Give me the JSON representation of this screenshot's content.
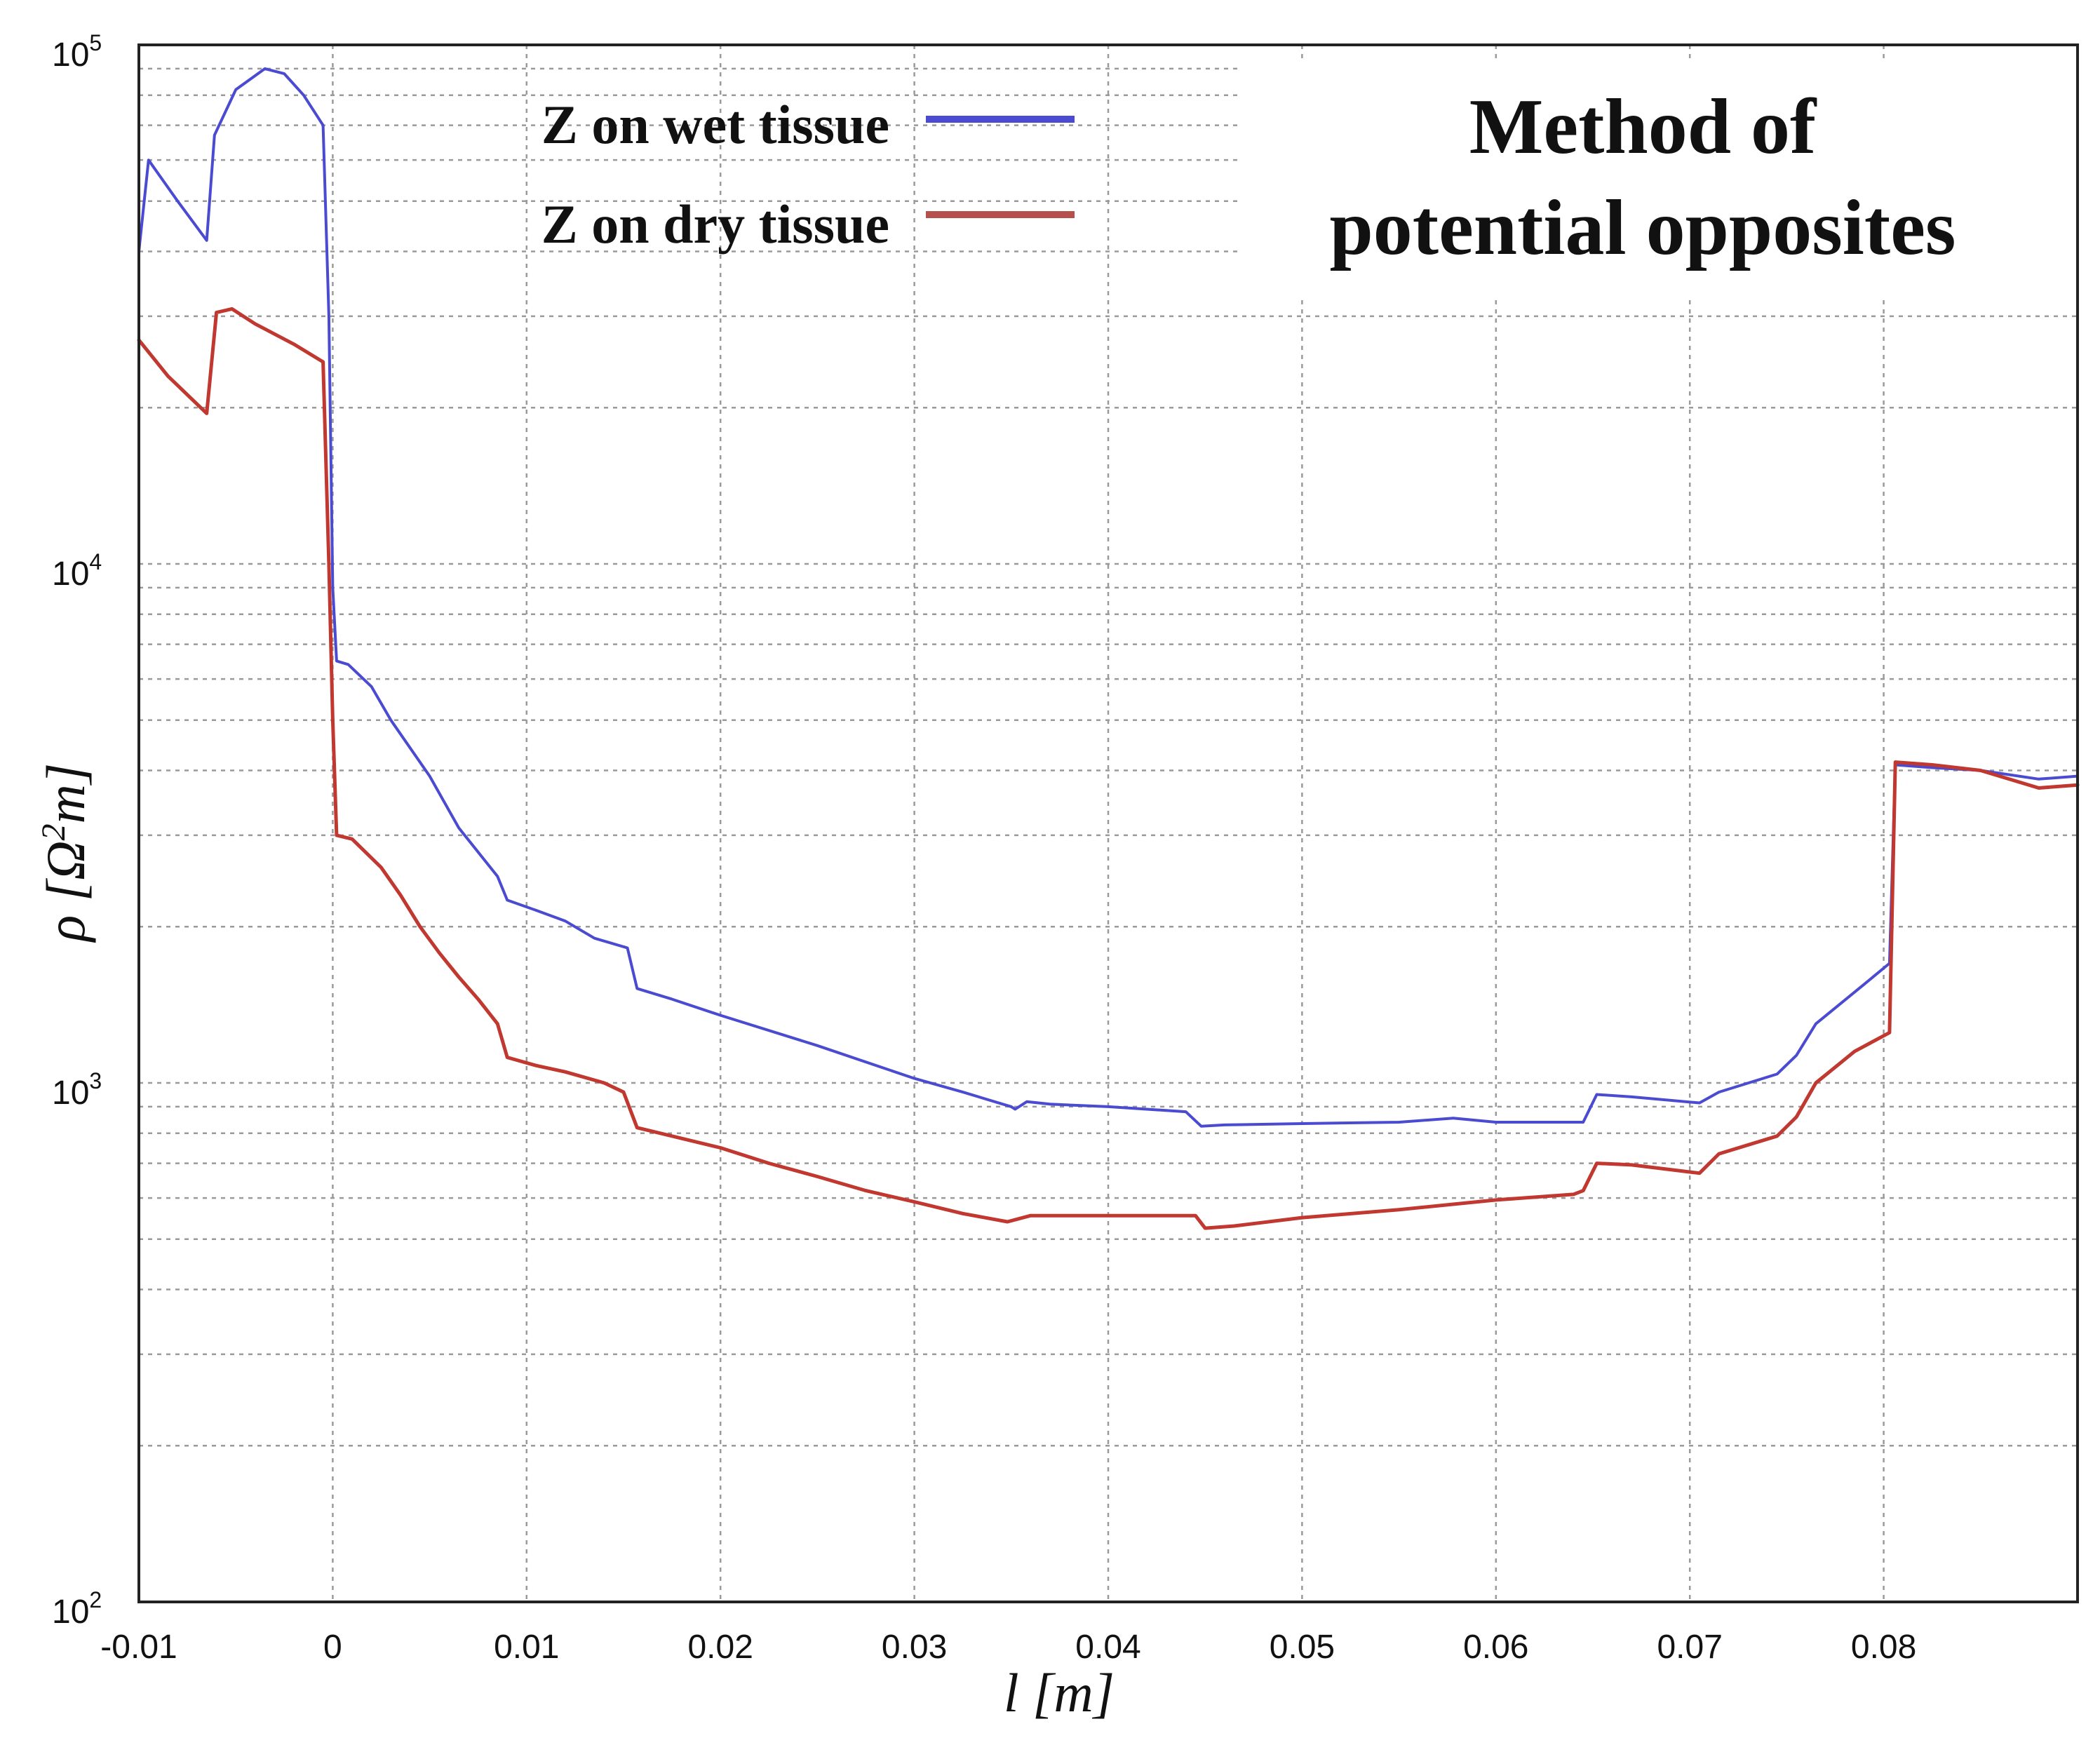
{
  "chart_data": {
    "type": "line",
    "title": "Method of potential opposites",
    "title_lines": [
      "Method of",
      "potential opposites"
    ],
    "xlabel": "l [m]",
    "ylabel": "ρ [Ω²m]",
    "ylabel_parts": {
      "pre": "ρ [Ω",
      "sup": "2",
      "post": "m]"
    },
    "xscale": "linear",
    "yscale": "log",
    "xlim": [
      -0.01,
      0.09
    ],
    "ylim": [
      100,
      100000
    ],
    "grid": true,
    "legend_position": "top-center",
    "x_ticks": [
      {
        "value": -0.01,
        "label": "-0.01"
      },
      {
        "value": 0,
        "label": "0"
      },
      {
        "value": 0.01,
        "label": "0.01"
      },
      {
        "value": 0.02,
        "label": "0.02"
      },
      {
        "value": 0.03,
        "label": "0.03"
      },
      {
        "value": 0.04,
        "label": "0.04"
      },
      {
        "value": 0.05,
        "label": "0.05"
      },
      {
        "value": 0.06,
        "label": "0.06"
      },
      {
        "value": 0.07,
        "label": "0.07"
      },
      {
        "value": 0.08,
        "label": "0.08"
      }
    ],
    "y_ticks": [
      {
        "value": 100,
        "base": "10",
        "exp": "2"
      },
      {
        "value": 1000,
        "base": "10",
        "exp": "3"
      },
      {
        "value": 10000,
        "base": "10",
        "exp": "4"
      },
      {
        "value": 100000,
        "base": "10",
        "exp": "5"
      }
    ],
    "series": [
      {
        "name": "Z on wet tissue",
        "color": "#4b4bd2",
        "points": [
          [
            -0.01,
            40000
          ],
          [
            -0.0095,
            60000
          ],
          [
            -0.008,
            50000
          ],
          [
            -0.0065,
            42000
          ],
          [
            -0.0061,
            67000
          ],
          [
            -0.005,
            82000
          ],
          [
            -0.0035,
            90000
          ],
          [
            -0.0025,
            88000
          ],
          [
            -0.0015,
            80000
          ],
          [
            -0.0005,
            70000
          ],
          [
            -0.0002,
            30000
          ],
          [
            0.0,
            9000
          ],
          [
            0.0002,
            6500
          ],
          [
            0.0008,
            6400
          ],
          [
            0.002,
            5800
          ],
          [
            0.003,
            5000
          ],
          [
            0.005,
            3900
          ],
          [
            0.0065,
            3100
          ],
          [
            0.0085,
            2500
          ],
          [
            0.009,
            2250
          ],
          [
            0.0105,
            2150
          ],
          [
            0.012,
            2050
          ],
          [
            0.0135,
            1900
          ],
          [
            0.0152,
            1820
          ],
          [
            0.0157,
            1520
          ],
          [
            0.0175,
            1450
          ],
          [
            0.02,
            1350
          ],
          [
            0.025,
            1180
          ],
          [
            0.03,
            1020
          ],
          [
            0.0325,
            960
          ],
          [
            0.035,
            900
          ],
          [
            0.0352,
            890
          ],
          [
            0.0358,
            920
          ],
          [
            0.037,
            910
          ],
          [
            0.04,
            900
          ],
          [
            0.044,
            880
          ],
          [
            0.0448,
            825
          ],
          [
            0.046,
            830
          ],
          [
            0.05,
            835
          ],
          [
            0.055,
            840
          ],
          [
            0.0578,
            855
          ],
          [
            0.06,
            840
          ],
          [
            0.0645,
            840
          ],
          [
            0.0652,
            950
          ],
          [
            0.067,
            940
          ],
          [
            0.0705,
            915
          ],
          [
            0.0715,
            960
          ],
          [
            0.0745,
            1040
          ],
          [
            0.0755,
            1130
          ],
          [
            0.0765,
            1300
          ],
          [
            0.079,
            1550
          ],
          [
            0.0803,
            1700
          ],
          [
            0.0806,
            4100
          ],
          [
            0.0825,
            4050
          ],
          [
            0.085,
            4000
          ],
          [
            0.088,
            3850
          ],
          [
            0.09,
            3900
          ]
        ]
      },
      {
        "name": "Z on dry tissue",
        "color": "#c0382f",
        "points": [
          [
            -0.01,
            27000
          ],
          [
            -0.0085,
            23000
          ],
          [
            -0.0065,
            19500
          ],
          [
            -0.006,
            30500
          ],
          [
            -0.0052,
            31000
          ],
          [
            -0.004,
            29000
          ],
          [
            -0.002,
            26500
          ],
          [
            -0.0005,
            24500
          ],
          [
            -0.0002,
            10000
          ],
          [
            0.0,
            5000
          ],
          [
            0.0002,
            3000
          ],
          [
            0.001,
            2950
          ],
          [
            0.0025,
            2600
          ],
          [
            0.0035,
            2300
          ],
          [
            0.0045,
            2000
          ],
          [
            0.0055,
            1780
          ],
          [
            0.0065,
            1600
          ],
          [
            0.0075,
            1450
          ],
          [
            0.0085,
            1300
          ],
          [
            0.009,
            1120
          ],
          [
            0.0105,
            1080
          ],
          [
            0.012,
            1050
          ],
          [
            0.014,
            1000
          ],
          [
            0.015,
            960
          ],
          [
            0.0157,
            820
          ],
          [
            0.0175,
            790
          ],
          [
            0.02,
            750
          ],
          [
            0.0225,
            700
          ],
          [
            0.025,
            660
          ],
          [
            0.0275,
            620
          ],
          [
            0.03,
            590
          ],
          [
            0.0325,
            560
          ],
          [
            0.0348,
            540
          ],
          [
            0.0352,
            545
          ],
          [
            0.036,
            555
          ],
          [
            0.04,
            555
          ],
          [
            0.0445,
            555
          ],
          [
            0.045,
            525
          ],
          [
            0.0465,
            530
          ],
          [
            0.05,
            550
          ],
          [
            0.055,
            570
          ],
          [
            0.06,
            595
          ],
          [
            0.064,
            610
          ],
          [
            0.0645,
            620
          ],
          [
            0.0652,
            700
          ],
          [
            0.067,
            695
          ],
          [
            0.0705,
            670
          ],
          [
            0.0715,
            730
          ],
          [
            0.0745,
            790
          ],
          [
            0.0755,
            860
          ],
          [
            0.0765,
            1000
          ],
          [
            0.0785,
            1150
          ],
          [
            0.0803,
            1250
          ],
          [
            0.0806,
            4150
          ],
          [
            0.0825,
            4100
          ],
          [
            0.085,
            4000
          ],
          [
            0.088,
            3700
          ],
          [
            0.09,
            3750
          ]
        ]
      }
    ]
  }
}
